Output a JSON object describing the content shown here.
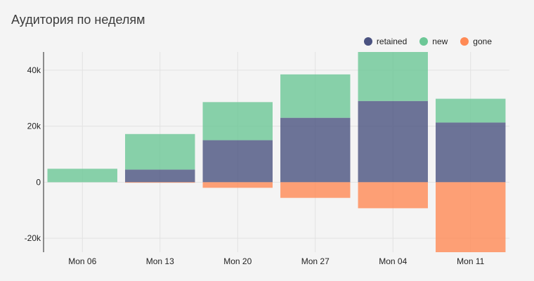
{
  "chart_data": {
    "type": "bar",
    "stacked": true,
    "title": "Аудитория по неделям",
    "categories": [
      "Mon 06",
      "Mon 13",
      "Mon 20",
      "Mon 27",
      "Mon 04",
      "Mon 11"
    ],
    "series": [
      {
        "name": "retained",
        "color": "#4a5280",
        "values": [
          0,
          4500,
          15000,
          23000,
          29000,
          21300
        ]
      },
      {
        "name": "new",
        "color": "#6cc796",
        "values": [
          4800,
          12700,
          13600,
          15500,
          18000,
          8500
        ]
      },
      {
        "name": "gone",
        "color": "#ff8a55",
        "values": [
          0,
          -200,
          -2000,
          -5600,
          -9300,
          -25000
        ]
      }
    ],
    "y_ticks": [
      {
        "value": 40000,
        "label": "40k"
      },
      {
        "value": 20000,
        "label": "20k"
      },
      {
        "value": 0,
        "label": "0"
      },
      {
        "value": -20000,
        "label": "-20k"
      }
    ],
    "ylim": [
      -25000,
      46500
    ],
    "legend_position": "top-right",
    "grid": true
  }
}
